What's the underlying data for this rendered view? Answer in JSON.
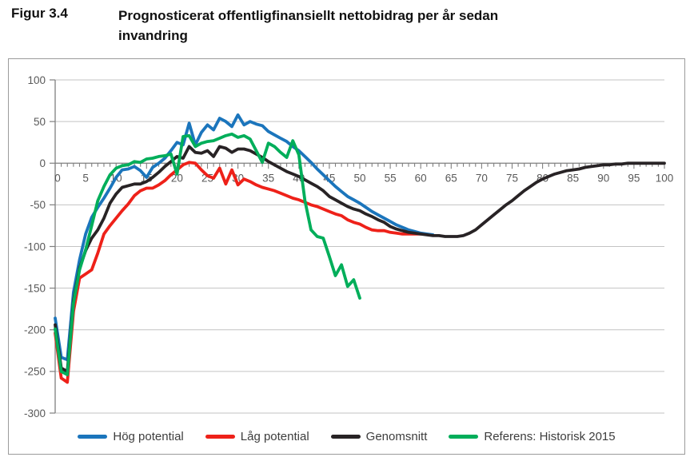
{
  "figure": {
    "label": "Figur 3.4",
    "title": "Prognosticerat offentligfinansiellt nettobidrag per år sedan invandring"
  },
  "colors": {
    "grid": "#c3c3c3",
    "axis": "#7f7f7f",
    "tick_text": "#595959",
    "border": "#9b9b9b"
  },
  "chart_data": {
    "type": "line",
    "title": "Prognosticerat offentligfinansiellt nettobidrag per år sedan invandring",
    "xlabel": "",
    "ylabel": "",
    "xlim": [
      0,
      100
    ],
    "ylim": [
      -300,
      100
    ],
    "x_tick_step": 5,
    "x_minor_tick_step": 1,
    "x_ticks": [
      0,
      5,
      10,
      15,
      20,
      25,
      30,
      35,
      40,
      45,
      50,
      55,
      60,
      65,
      70,
      75,
      80,
      85,
      90,
      95,
      100
    ],
    "y_ticks": [
      100,
      50,
      0,
      -50,
      -100,
      -150,
      -200,
      -250,
      -300
    ],
    "grid": "horizontal",
    "legend_position": "bottom-center",
    "series": [
      {
        "name": "Hög potential",
        "color": "#1b75bc",
        "x_start": 0,
        "values": [
          -186,
          -233,
          -236,
          -155,
          -116,
          -85,
          -65,
          -53,
          -42,
          -30,
          -17,
          -8,
          -7,
          -4,
          -9,
          -17,
          -5,
          0,
          6,
          15,
          25,
          22,
          48,
          22,
          37,
          46,
          40,
          54,
          50,
          44,
          58,
          46,
          50,
          47,
          45,
          38,
          34,
          30,
          26,
          20,
          15,
          8,
          1,
          -7,
          -14,
          -21,
          -28,
          -34,
          -40,
          -44,
          -48,
          -53,
          -58,
          -62,
          -66,
          -70,
          -74,
          -77,
          -80,
          -82,
          -84,
          -85,
          -86
        ]
      },
      {
        "name": "Låg potential",
        "color": "#ee2119",
        "x_start": 0,
        "values": [
          -204,
          -258,
          -263,
          -178,
          -138,
          -133,
          -128,
          -108,
          -85,
          -75,
          -66,
          -57,
          -49,
          -39,
          -33,
          -30,
          -30,
          -26,
          -21,
          -14,
          -8,
          -2,
          1,
          0,
          -8,
          -15,
          -18,
          -6,
          -25,
          -8,
          -26,
          -19,
          -22,
          -26,
          -29,
          -31,
          -33,
          -36,
          -39,
          -42,
          -44,
          -47,
          -50,
          -52,
          -55,
          -58,
          -61,
          -63,
          -68,
          -71,
          -73,
          -77,
          -80,
          -81,
          -81,
          -83,
          -84,
          -85,
          -85,
          -85,
          -85
        ]
      },
      {
        "name": "Genomsnitt",
        "color": "#282325",
        "x_start": 0,
        "values": [
          -194,
          -246,
          -250,
          -165,
          -126,
          -105,
          -90,
          -80,
          -66,
          -48,
          -37,
          -29,
          -27,
          -25,
          -25,
          -22,
          -17,
          -11,
          -4,
          2,
          8,
          6,
          20,
          13,
          12,
          15,
          8,
          20,
          18,
          13,
          17,
          17,
          15,
          11,
          7,
          2,
          -2,
          -6,
          -10,
          -13,
          -16,
          -20,
          -24,
          -28,
          -33,
          -40,
          -44,
          -48,
          -52,
          -55,
          -57,
          -61,
          -64,
          -68,
          -71,
          -76,
          -79,
          -81,
          -83,
          -84,
          -85,
          -86,
          -87,
          -87,
          -88,
          -88,
          -88,
          -87,
          -84,
          -80,
          -74,
          -68,
          -62,
          -56,
          -50,
          -45,
          -39,
          -33,
          -28,
          -23,
          -19,
          -16,
          -13,
          -11,
          -9,
          -8,
          -7,
          -5,
          -4,
          -3,
          -2,
          -2,
          -1,
          -1,
          0,
          0,
          0,
          0,
          0,
          0,
          0
        ]
      },
      {
        "name": "Referens: Historisk 2015",
        "color": "#00ae5a",
        "x_start": 0,
        "values": [
          -199,
          -250,
          -254,
          -168,
          -128,
          -104,
          -75,
          -45,
          -28,
          -14,
          -6,
          -3,
          -2,
          2,
          1,
          5,
          6,
          8,
          9,
          11,
          -13,
          32,
          33,
          20,
          24,
          26,
          27,
          30,
          33,
          35,
          31,
          33,
          29,
          15,
          1,
          24,
          20,
          13,
          7,
          27,
          10,
          -45,
          -80,
          -88,
          -90,
          -112,
          -135,
          -122,
          -148,
          -140,
          -162
        ]
      }
    ]
  }
}
